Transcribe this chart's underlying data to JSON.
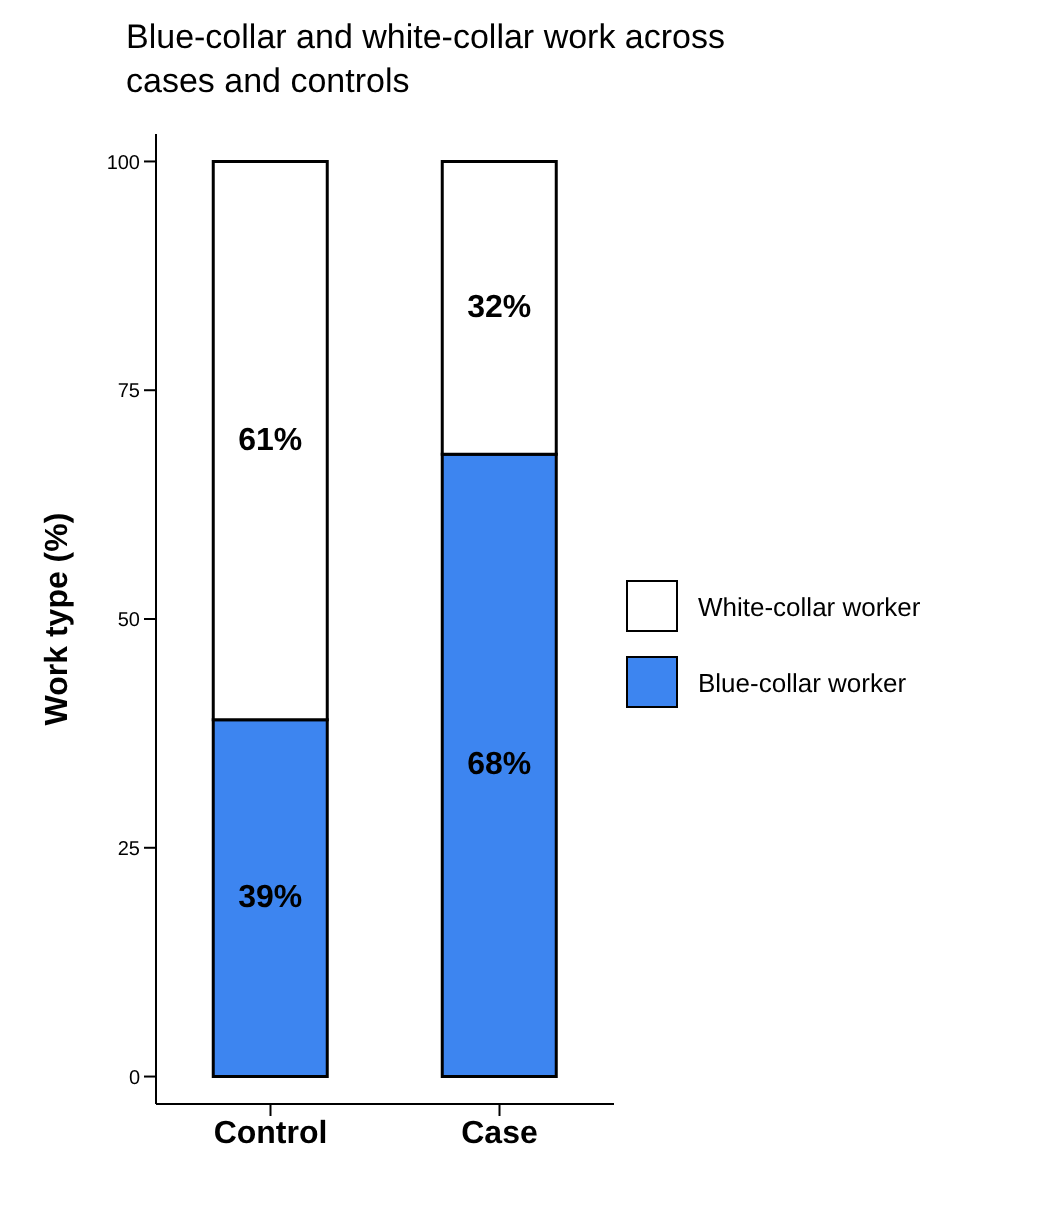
{
  "chart_data": {
    "type": "bar",
    "title": "Blue-collar and white-collar work across cases and controls",
    "ylabel": "Work type (%)",
    "categories": [
      "Control",
      "Case"
    ],
    "stacked": true,
    "ylim": [
      -3,
      103
    ],
    "yticks": [
      0,
      25,
      50,
      75,
      100
    ],
    "legend": "right",
    "series": [
      {
        "name": "Blue-collar worker",
        "color": "#3d85f0",
        "values": [
          39,
          68
        ],
        "value_labels": [
          "39%",
          "68%"
        ]
      },
      {
        "name": "White-collar worker",
        "color": "#ffffff",
        "values": [
          61,
          32
        ],
        "value_labels": [
          "61%",
          "32%"
        ]
      }
    ]
  }
}
